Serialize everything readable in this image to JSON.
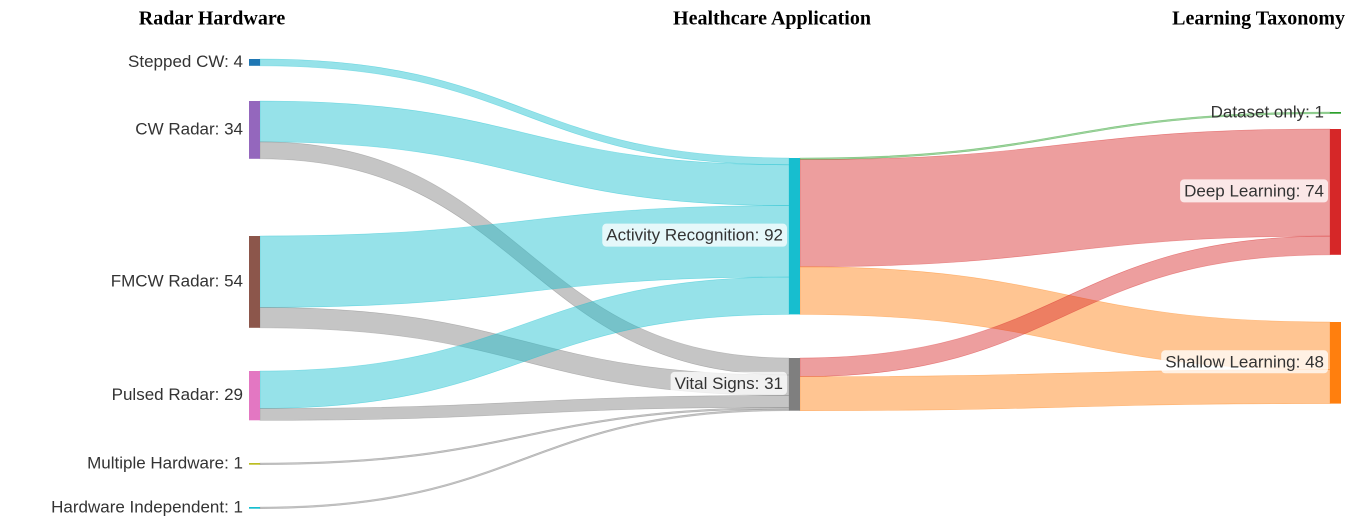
{
  "chart_data": {
    "type": "sankey",
    "columns": [
      "Radar Hardware",
      "Healthcare Application",
      "Learning Taxonomy"
    ],
    "nodes": [
      {
        "label": "Stepped CW: 4",
        "value": 4,
        "color": "#1f77b4",
        "column": 0
      },
      {
        "label": "CW Radar: 34",
        "value": 34,
        "color": "#9467bd",
        "column": 0
      },
      {
        "label": "FMCW Radar: 54",
        "value": 54,
        "color": "#8c564b",
        "column": 0
      },
      {
        "label": "Pulsed Radar: 29",
        "value": 29,
        "color": "#e377c2",
        "column": 0
      },
      {
        "label": "Multiple Hardware: 1",
        "value": 1,
        "color": "#bcbd22",
        "column": 0
      },
      {
        "label": "Hardware Independent: 1",
        "value": 1,
        "color": "#17becf",
        "column": 0
      },
      {
        "label": "Activity Recognition: 92",
        "value": 92,
        "color": "#17becf",
        "column": 1
      },
      {
        "label": "Vital Signs: 31",
        "value": 31,
        "color": "#7f7f7f",
        "column": 1
      },
      {
        "label": "Dataset only: 1",
        "value": 1,
        "color": "#2ca02c",
        "column": 2
      },
      {
        "label": "Deep Learning: 74",
        "value": 74,
        "color": "#d62728",
        "column": 2
      },
      {
        "label": "Shallow Learning: 48",
        "value": 48,
        "color": "#ff7f0e",
        "column": 2
      }
    ],
    "links": [
      {
        "source": 0,
        "target": 6,
        "value": 4
      },
      {
        "source": 1,
        "target": 6,
        "value": 24
      },
      {
        "source": 1,
        "target": 7,
        "value": 10
      },
      {
        "source": 2,
        "target": 6,
        "value": 42
      },
      {
        "source": 2,
        "target": 7,
        "value": 12
      },
      {
        "source": 3,
        "target": 6,
        "value": 22
      },
      {
        "source": 3,
        "target": 7,
        "value": 7
      },
      {
        "source": 4,
        "target": 7,
        "value": 1
      },
      {
        "source": 5,
        "target": 7,
        "value": 1
      },
      {
        "source": 6,
        "target": 8,
        "value": 1
      },
      {
        "source": 6,
        "target": 9,
        "value": 63
      },
      {
        "source": 6,
        "target": 10,
        "value": 28
      },
      {
        "source": 7,
        "target": 9,
        "value": 11
      },
      {
        "source": 7,
        "target": 10,
        "value": 20
      }
    ],
    "link_color": "target"
  }
}
